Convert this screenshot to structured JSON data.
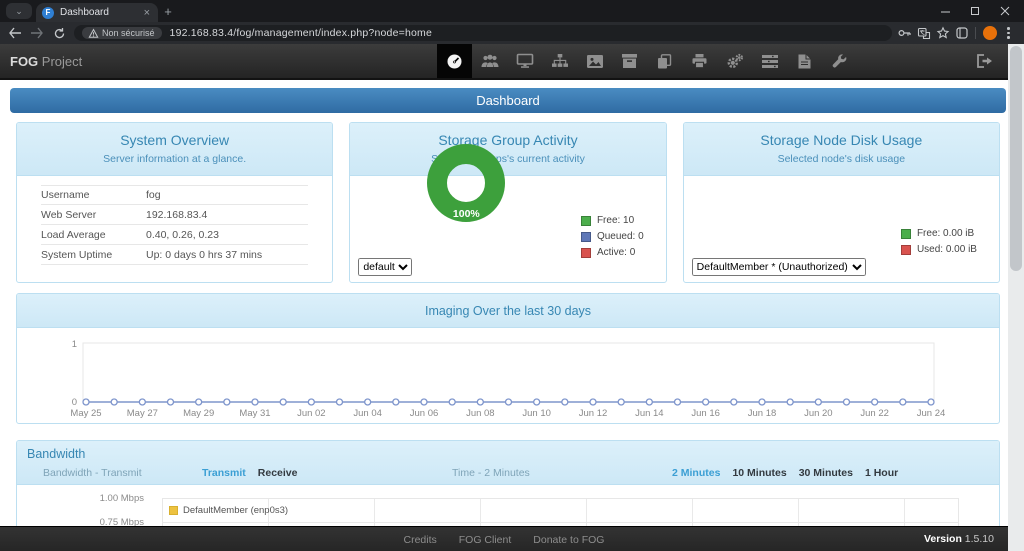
{
  "browser": {
    "tab": {
      "title": "Dashboard",
      "favicon_letter": "F"
    },
    "security_badge": "Non sécurisé",
    "url": "192.168.83.4/fog/management/index.php?node=home"
  },
  "navbar": {
    "brand_bold": "FOG",
    "brand_rest": "Project",
    "items": [
      "dashboard",
      "users",
      "hosts",
      "groups",
      "images",
      "storage",
      "snapins",
      "printers",
      "service-settings",
      "tasks",
      "reports",
      "fog-configuration"
    ],
    "active_item": "dashboard",
    "logout": "logout"
  },
  "page": {
    "banner": "Dashboard",
    "system_overview": {
      "title": "System Overview",
      "subtitle": "Server information at a glance.",
      "rows": [
        {
          "label": "Username",
          "value": "fog"
        },
        {
          "label": "Web Server",
          "value": "192.168.83.4"
        },
        {
          "label": "Load Average",
          "value": "0.40, 0.26, 0.23"
        },
        {
          "label": "System Uptime",
          "value": "Up: 0 days 0 hrs 37 mins"
        }
      ]
    },
    "storage_group": {
      "title": "Storage Group Activity",
      "subtitle": "Selected groups's current activity",
      "donut_label": "100%",
      "legend": [
        {
          "label": "Free: 10",
          "color": "#4cae4c"
        },
        {
          "label": "Queued: 0",
          "color": "#5e77b7"
        },
        {
          "label": "Active: 0",
          "color": "#d9534f"
        }
      ],
      "select_value": "default"
    },
    "storage_node": {
      "title": "Storage Node Disk Usage",
      "subtitle": "Selected node's disk usage",
      "legend": [
        {
          "label": "Free: 0.00 iB",
          "color": "#4cae4c"
        },
        {
          "label": "Used: 0.00 iB",
          "color": "#d9534f"
        }
      ],
      "select_value": "DefaultMember * (Unauthorized)"
    },
    "imaging": {
      "title": "Imaging Over the last 30 days"
    },
    "bandwidth": {
      "title": "Bandwidth",
      "mode_label": "Bandwidth - Transmit",
      "mode_options": [
        {
          "label": "Transmit",
          "active": true
        },
        {
          "label": "Receive",
          "active": false
        }
      ],
      "time_label": "Time - 2 Minutes",
      "time_options": [
        {
          "label": "2 Minutes",
          "active": true
        },
        {
          "label": "10 Minutes",
          "active": false
        },
        {
          "label": "30 Minutes",
          "active": false
        },
        {
          "label": "1 Hour",
          "active": false
        }
      ],
      "y_labels": [
        "1.00 Mbps",
        "0.75 Mbps"
      ],
      "legend": "DefaultMember (enp0s3)"
    },
    "footer": {
      "links": [
        "Credits",
        "FOG Client",
        "Donate to FOG"
      ],
      "version_label": "Version",
      "version_value": "1.5.10"
    }
  },
  "chart_data": [
    {
      "id": "storage-group-donut",
      "type": "pie",
      "title": "Storage Group Activity",
      "slices": [
        {
          "label": "Free",
          "value": 10,
          "color": "#3da03c"
        },
        {
          "label": "Queued",
          "value": 0,
          "color": "#5e77b7"
        },
        {
          "label": "Active",
          "value": 0,
          "color": "#d9534f"
        }
      ],
      "center_label": "100%",
      "legend_position": "right"
    },
    {
      "id": "imaging",
      "type": "line",
      "title": "Imaging Over the last 30 days",
      "num_points": 31,
      "values": [
        0,
        0,
        0,
        0,
        0,
        0,
        0,
        0,
        0,
        0,
        0,
        0,
        0,
        0,
        0,
        0,
        0,
        0,
        0,
        0,
        0,
        0,
        0,
        0,
        0,
        0,
        0,
        0,
        0,
        0,
        0
      ],
      "x_tick_labels": [
        "May 25",
        "May 27",
        "May 29",
        "May 31",
        "Jun 02",
        "Jun 04",
        "Jun 06",
        "Jun 08",
        "Jun 10",
        "Jun 12",
        "Jun 14",
        "Jun 16",
        "Jun 18",
        "Jun 20",
        "Jun 22",
        "Jun 24"
      ],
      "tick_every": 2,
      "ylim": [
        0,
        1
      ],
      "y_ticks": [
        "0",
        "1"
      ],
      "line_color": "#7e95cc",
      "marker": "hollow-circle",
      "grid": false
    },
    {
      "id": "bandwidth",
      "type": "line",
      "title": "Bandwidth - Transmit",
      "series": [
        {
          "name": "DefaultMember (enp0s3)",
          "color": "#edc240",
          "values": []
        }
      ],
      "y_tick_labels": [
        "1.00 Mbps",
        "0.75 Mbps"
      ],
      "grid": true,
      "note": "chart area partially cut off by viewport"
    }
  ]
}
